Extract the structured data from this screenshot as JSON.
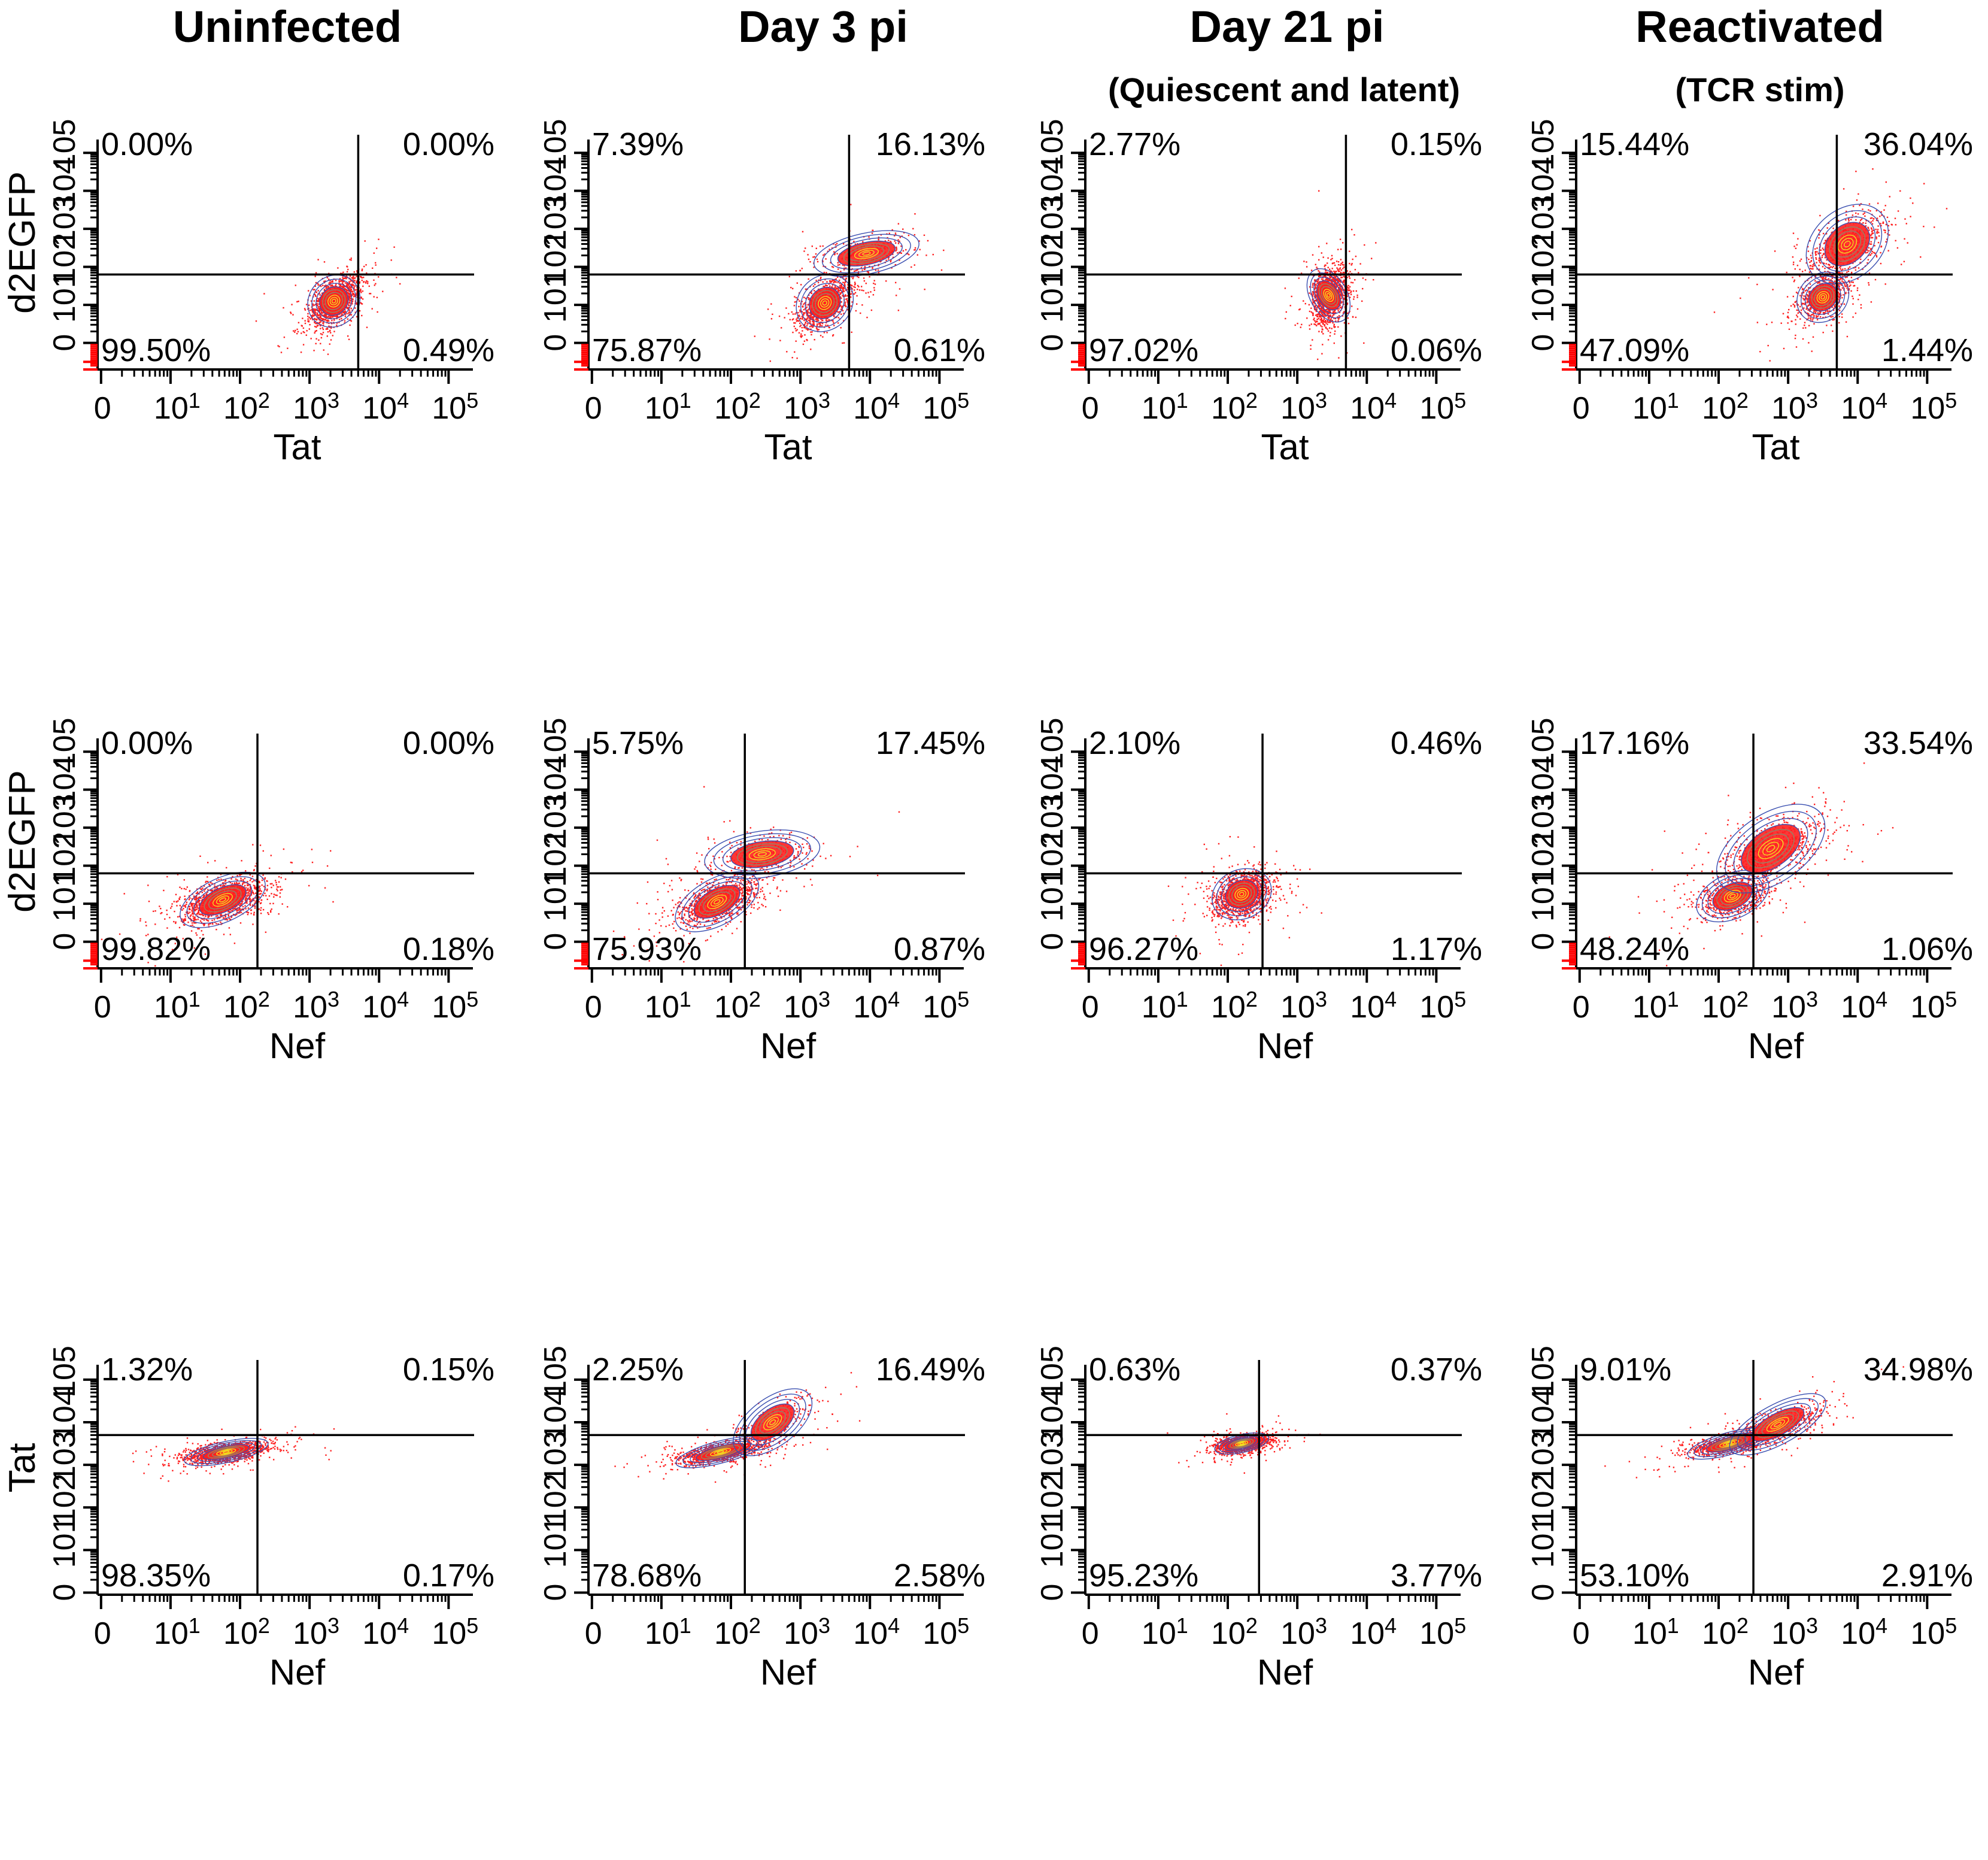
{
  "columns": [
    {
      "title": "Uninfected",
      "subtitle": ""
    },
    {
      "title": "Day 3 pi",
      "subtitle": ""
    },
    {
      "title": "Day 21 pi",
      "subtitle": "(Quiescent and latent)"
    },
    {
      "title": "Reactivated",
      "subtitle": "(TCR stim)"
    }
  ],
  "colors": {
    "events": "#ff2020",
    "contour_outer": "#3a4fb0",
    "contour_mid": "#8a8a6a",
    "contour_inner": "#f0e020",
    "axis": "#000000",
    "negative_ticks": "#ff0000"
  },
  "chart_data": [
    {
      "type": "scatter",
      "title": "Uninfected",
      "row": 1,
      "xlabel": "Tat",
      "ylabel": "d2EGFP",
      "x_scale": "biexponential",
      "y_scale": "biexponential",
      "x_ticks": [
        "0",
        "10^1",
        "10^2",
        "10^3",
        "10^4",
        "10^5"
      ],
      "y_ticks": [
        "0",
        "10^1",
        "10^2",
        "10^3",
        "10^4",
        "10^5"
      ],
      "gate": {
        "x": 3.7,
        "y": 1.8
      },
      "quadrants": {
        "UL": "0.00%",
        "UR": "0.00%",
        "LL": "99.50%",
        "LR": "0.49%"
      },
      "populations": [
        {
          "cx": 3.35,
          "cy": 1.1,
          "sx": 0.18,
          "sy": 0.32,
          "rho": 0.55,
          "weight": 1.0
        }
      ]
    },
    {
      "type": "scatter",
      "title": "Day 3 pi",
      "row": 1,
      "xlabel": "Tat",
      "ylabel": "d2EGFP",
      "x_scale": "biexponential",
      "y_scale": "biexponential",
      "x_ticks": [
        "0",
        "10^1",
        "10^2",
        "10^3",
        "10^4",
        "10^5"
      ],
      "y_ticks": [
        "0",
        "10^1",
        "10^2",
        "10^3",
        "10^4",
        "10^5"
      ],
      "gate": {
        "x": 3.7,
        "y": 1.8
      },
      "quadrants": {
        "UL": "7.39%",
        "UR": "16.13%",
        "LL": "75.87%",
        "LR": "0.61%"
      },
      "populations": [
        {
          "cx": 3.35,
          "cy": 1.05,
          "sx": 0.2,
          "sy": 0.35,
          "rho": 0.6,
          "weight": 0.76
        },
        {
          "cx": 3.95,
          "cy": 2.35,
          "sx": 0.35,
          "sy": 0.25,
          "rho": 0.3,
          "weight": 0.24
        }
      ]
    },
    {
      "type": "scatter",
      "title": "Day 21 pi (Quiescent and latent)",
      "row": 1,
      "xlabel": "Tat",
      "ylabel": "d2EGFP",
      "x_scale": "biexponential",
      "y_scale": "biexponential",
      "x_ticks": [
        "0",
        "10^1",
        "10^2",
        "10^3",
        "10^4",
        "10^5"
      ],
      "y_ticks": [
        "0",
        "10^1",
        "10^2",
        "10^3",
        "10^4",
        "10^5"
      ],
      "gate": {
        "x": 3.7,
        "y": 1.8
      },
      "quadrants": {
        "UL": "2.77%",
        "UR": "0.15%",
        "LL": "97.02%",
        "LR": "0.06%"
      },
      "populations": [
        {
          "cx": 3.45,
          "cy": 1.25,
          "sx": 0.12,
          "sy": 0.35,
          "rho": 0.2,
          "weight": 1.0
        }
      ]
    },
    {
      "type": "scatter",
      "title": "Reactivated (TCR stim)",
      "row": 1,
      "xlabel": "Tat",
      "ylabel": "d2EGFP",
      "x_scale": "biexponential",
      "y_scale": "biexponential",
      "x_ticks": [
        "0",
        "10^1",
        "10^2",
        "10^3",
        "10^4",
        "10^5"
      ],
      "y_ticks": [
        "0",
        "10^1",
        "10^2",
        "10^3",
        "10^4",
        "10^5"
      ],
      "gate": {
        "x": 3.7,
        "y": 1.8
      },
      "quadrants": {
        "UL": "15.44%",
        "UR": "36.04%",
        "LL": "47.09%",
        "LR": "1.44%"
      },
      "populations": [
        {
          "cx": 3.5,
          "cy": 1.2,
          "sx": 0.18,
          "sy": 0.3,
          "rho": 0.5,
          "weight": 0.55
        },
        {
          "cx": 3.85,
          "cy": 2.6,
          "sx": 0.3,
          "sy": 0.45,
          "rho": 0.6,
          "weight": 0.45
        }
      ]
    },
    {
      "type": "scatter",
      "title": "Uninfected",
      "row": 2,
      "xlabel": "Nef",
      "ylabel": "d2EGFP",
      "x_scale": "biexponential",
      "y_scale": "biexponential",
      "x_ticks": [
        "0",
        "10^1",
        "10^2",
        "10^3",
        "10^4",
        "10^5"
      ],
      "y_ticks": [
        "0",
        "10^1",
        "10^2",
        "10^3",
        "10^4",
        "10^5"
      ],
      "gate": {
        "x": 2.25,
        "y": 1.8
      },
      "quadrants": {
        "UL": "0.00%",
        "UR": "0.00%",
        "LL": "99.82%",
        "LR": "0.18%"
      },
      "populations": [
        {
          "cx": 1.75,
          "cy": 1.1,
          "sx": 0.3,
          "sy": 0.28,
          "rho": 0.5,
          "weight": 1.0
        }
      ]
    },
    {
      "type": "scatter",
      "title": "Day 3 pi",
      "row": 2,
      "xlabel": "Nef",
      "ylabel": "d2EGFP",
      "x_scale": "biexponential",
      "y_scale": "biexponential",
      "x_ticks": [
        "0",
        "10^1",
        "10^2",
        "10^3",
        "10^4",
        "10^5"
      ],
      "y_ticks": [
        "0",
        "10^1",
        "10^2",
        "10^3",
        "10^4",
        "10^5"
      ],
      "gate": {
        "x": 2.2,
        "y": 1.8
      },
      "quadrants": {
        "UL": "5.75%",
        "UR": "17.45%",
        "LL": "75.93%",
        "LR": "0.87%"
      },
      "populations": [
        {
          "cx": 1.8,
          "cy": 1.05,
          "sx": 0.3,
          "sy": 0.3,
          "rho": 0.55,
          "weight": 0.77
        },
        {
          "cx": 2.45,
          "cy": 2.3,
          "sx": 0.38,
          "sy": 0.28,
          "rho": 0.2,
          "weight": 0.23
        }
      ]
    },
    {
      "type": "scatter",
      "title": "Day 21 pi (Quiescent and latent)",
      "row": 2,
      "xlabel": "Nef",
      "ylabel": "d2EGFP",
      "x_scale": "biexponential",
      "y_scale": "biexponential",
      "x_ticks": [
        "0",
        "10^1",
        "10^2",
        "10^3",
        "10^4",
        "10^5"
      ],
      "y_ticks": [
        "0",
        "10^1",
        "10^2",
        "10^3",
        "10^4",
        "10^5"
      ],
      "gate": {
        "x": 2.5,
        "y": 1.8
      },
      "quadrants": {
        "UL": "2.10%",
        "UR": "0.46%",
        "LL": "96.27%",
        "LR": "1.17%"
      },
      "populations": [
        {
          "cx": 2.2,
          "cy": 1.25,
          "sx": 0.2,
          "sy": 0.3,
          "rho": 0.3,
          "weight": 1.0
        }
      ]
    },
    {
      "type": "scatter",
      "title": "Reactivated (TCR stim)",
      "row": 2,
      "xlabel": "Nef",
      "ylabel": "d2EGFP",
      "x_scale": "biexponential",
      "y_scale": "biexponential",
      "x_ticks": [
        "0",
        "10^1",
        "10^2",
        "10^3",
        "10^4",
        "10^5"
      ],
      "y_ticks": [
        "0",
        "10^1",
        "10^2",
        "10^3",
        "10^4",
        "10^5"
      ],
      "gate": {
        "x": 2.5,
        "y": 1.8
      },
      "quadrants": {
        "UL": "17.16%",
        "UR": "33.54%",
        "LL": "48.24%",
        "LR": "1.06%"
      },
      "populations": [
        {
          "cx": 2.2,
          "cy": 1.2,
          "sx": 0.25,
          "sy": 0.28,
          "rho": 0.4,
          "weight": 0.5
        },
        {
          "cx": 2.75,
          "cy": 2.45,
          "sx": 0.4,
          "sy": 0.45,
          "rho": 0.6,
          "weight": 0.5
        }
      ]
    },
    {
      "type": "scatter",
      "title": "Uninfected",
      "row": 3,
      "xlabel": "Nef",
      "ylabel": "Tat",
      "x_scale": "biexponential",
      "y_scale": "biexponential",
      "x_ticks": [
        "0",
        "10^1",
        "10^2",
        "10^3",
        "10^4",
        "10^5"
      ],
      "y_ticks": [
        "0",
        "10^1",
        "10^2",
        "10^3",
        "10^4",
        "10^5"
      ],
      "gate": {
        "x": 2.25,
        "y": 3.7
      },
      "quadrants": {
        "UL": "1.32%",
        "UR": "0.15%",
        "LL": "98.35%",
        "LR": "0.17%"
      },
      "populations": [
        {
          "cx": 1.8,
          "cy": 3.3,
          "sx": 0.28,
          "sy": 0.12,
          "rho": 0.5,
          "weight": 1.0
        }
      ]
    },
    {
      "type": "scatter",
      "title": "Day 3 pi",
      "row": 3,
      "xlabel": "Nef",
      "ylabel": "Tat",
      "x_scale": "biexponential",
      "y_scale": "biexponential",
      "x_ticks": [
        "0",
        "10^1",
        "10^2",
        "10^3",
        "10^4",
        "10^5"
      ],
      "y_ticks": [
        "0",
        "10^1",
        "10^2",
        "10^3",
        "10^4",
        "10^5"
      ],
      "gate": {
        "x": 2.2,
        "y": 3.7
      },
      "quadrants": {
        "UL": "2.25%",
        "UR": "16.49%",
        "LL": "78.68%",
        "LR": "2.58%"
      },
      "populations": [
        {
          "cx": 1.85,
          "cy": 3.3,
          "sx": 0.3,
          "sy": 0.13,
          "rho": 0.6,
          "weight": 0.8
        },
        {
          "cx": 2.6,
          "cy": 4.0,
          "sx": 0.3,
          "sy": 0.3,
          "rho": 0.75,
          "weight": 0.2
        }
      ]
    },
    {
      "type": "scatter",
      "title": "Day 21 pi (Quiescent and latent)",
      "row": 3,
      "xlabel": "Nef",
      "ylabel": "Tat",
      "x_scale": "biexponential",
      "y_scale": "biexponential",
      "x_ticks": [
        "0",
        "10^1",
        "10^2",
        "10^3",
        "10^4",
        "10^5"
      ],
      "y_ticks": [
        "0",
        "10^1",
        "10^2",
        "10^3",
        "10^4",
        "10^5"
      ],
      "gate": {
        "x": 2.45,
        "y": 3.7
      },
      "quadrants": {
        "UL": "0.63%",
        "UR": "0.37%",
        "LL": "95.23%",
        "LR": "3.77%"
      },
      "populations": [
        {
          "cx": 2.2,
          "cy": 3.5,
          "sx": 0.18,
          "sy": 0.1,
          "rho": 0.4,
          "weight": 1.0
        }
      ]
    },
    {
      "type": "scatter",
      "title": "Reactivated (TCR stim)",
      "row": 3,
      "xlabel": "Nef",
      "ylabel": "Tat",
      "x_scale": "biexponential",
      "y_scale": "biexponential",
      "x_ticks": [
        "0",
        "10^1",
        "10^2",
        "10^3",
        "10^4",
        "10^5"
      ],
      "y_ticks": [
        "0",
        "10^1",
        "10^2",
        "10^3",
        "10^4",
        "10^5"
      ],
      "gate": {
        "x": 2.5,
        "y": 3.7
      },
      "quadrants": {
        "UL": "9.01%",
        "UR": "34.98%",
        "LL": "53.10%",
        "LR": "2.91%"
      },
      "populations": [
        {
          "cx": 2.15,
          "cy": 3.5,
          "sx": 0.28,
          "sy": 0.13,
          "rho": 0.6,
          "weight": 0.6
        },
        {
          "cx": 2.85,
          "cy": 3.95,
          "sx": 0.35,
          "sy": 0.25,
          "rho": 0.75,
          "weight": 0.4
        }
      ]
    }
  ]
}
